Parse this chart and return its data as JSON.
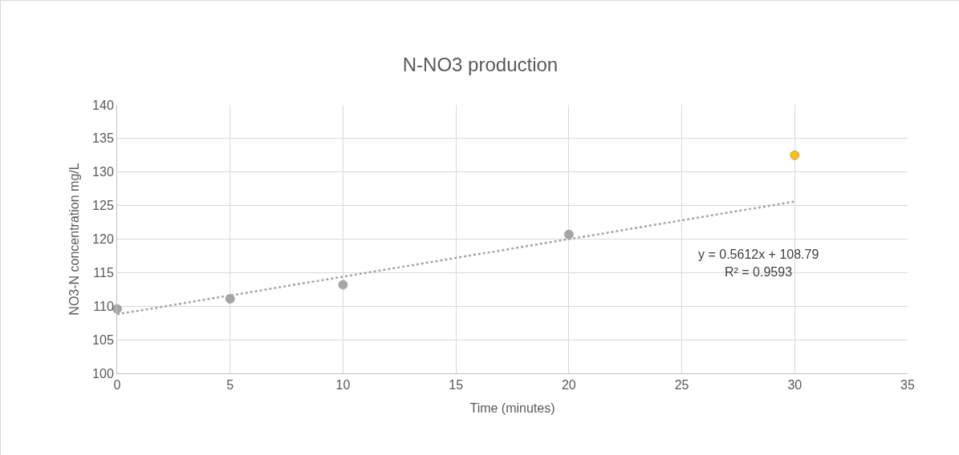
{
  "chart_data": {
    "type": "scatter",
    "title": "N-NO3 production",
    "xlabel": "Time (minutes)",
    "ylabel": "NO3-N concentration mg/L",
    "xlim": [
      0,
      35
    ],
    "xticks": [
      0,
      5,
      10,
      15,
      20,
      25,
      30,
      35
    ],
    "ylim": [
      100,
      140
    ],
    "yticks": [
      100,
      105,
      110,
      115,
      120,
      125,
      130,
      135,
      140
    ],
    "grid": true,
    "legend": false,
    "series": [
      {
        "marker": "circle",
        "x": [
          0,
          5,
          10,
          20,
          30
        ],
        "values": [
          109.6,
          111.1,
          113.2,
          120.7,
          132.5
        ],
        "colors": [
          "#a5a5a5",
          "#a5a5a5",
          "#a5a5a5",
          "#a5a5a5",
          "#ffc000"
        ]
      },
      {
        "type": "line",
        "x": [
          0,
          30
        ],
        "values": [
          108.8,
          125.6
        ],
        "color": "#a5a5a5",
        "line_style": "dotted"
      }
    ],
    "annotations": [
      "y = 0.5612x + 108.79",
      "R² = 0.9593"
    ]
  }
}
